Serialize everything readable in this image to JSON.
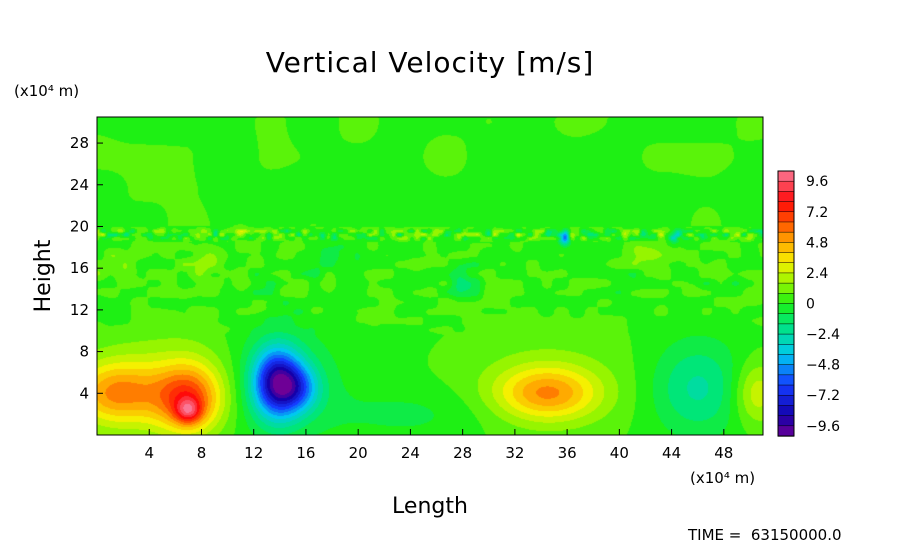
{
  "chart_data": {
    "type": "heatmap",
    "title": "Vertical Velocity [m/s]",
    "xlabel": "Length",
    "ylabel": "Height",
    "x_unit": "(x10⁴ m)",
    "y_unit": "(x10⁴ m)",
    "xlim": [
      0,
      51
    ],
    "ylim": [
      0,
      30.5
    ],
    "x_ticks": [
      4,
      8,
      12,
      16,
      20,
      24,
      28,
      32,
      36,
      40,
      44,
      48
    ],
    "y_ticks": [
      4,
      8,
      12,
      16,
      20,
      24,
      28
    ],
    "colorbar": {
      "ticks": [
        9.6,
        7.2,
        4.8,
        2.4,
        0,
        -2.4,
        -4.8,
        -7.2,
        -9.6
      ],
      "tick_labels": [
        "9.6",
        "7.2",
        "4.8",
        "2.4",
        "0",
        "−2.4",
        "−4.8",
        "−7.2",
        "−9.6"
      ],
      "range": [
        -10.4,
        10.4
      ]
    },
    "background_value": 0.3,
    "features": [
      {
        "name": "updraft-left",
        "x": 1.5,
        "y": 4.0,
        "rx": 3.5,
        "ry": 3.0,
        "value": 4.5
      },
      {
        "name": "updraft-core",
        "x": 7.0,
        "y": 3.5,
        "rx": 2.5,
        "ry": 3.2,
        "value": 5.5
      },
      {
        "name": "updraft-peak",
        "x": 7.0,
        "y": 2.3,
        "rx": 1.0,
        "ry": 1.2,
        "value": 4.0
      },
      {
        "name": "warm-halo",
        "x": 6.0,
        "y": 5.0,
        "rx": 6.0,
        "ry": 5.0,
        "value": 1.5
      },
      {
        "name": "downdraft",
        "x": 13.8,
        "y": 5.0,
        "rx": 1.8,
        "ry": 3.2,
        "value": -8.5
      },
      {
        "name": "downdraft-trail",
        "x": 15.5,
        "y": 4.5,
        "rx": 1.6,
        "ry": 2.2,
        "value": -3.5
      },
      {
        "name": "downdraft-halo",
        "x": 14.0,
        "y": 5.0,
        "rx": 4.5,
        "ry": 5.5,
        "value": -1.8
      },
      {
        "name": "updraft-right",
        "x": 34.5,
        "y": 4.0,
        "rx": 3.8,
        "ry": 2.5,
        "value": 4.2
      },
      {
        "name": "updraft-right-halo",
        "x": 34.5,
        "y": 5.0,
        "rx": 6.5,
        "ry": 5.0,
        "value": 1.0
      },
      {
        "name": "weak-downdraft",
        "x": 46.0,
        "y": 4.5,
        "rx": 3.5,
        "ry": 4.5,
        "value": -2.5
      },
      {
        "name": "edge-updraft",
        "x": 50.5,
        "y": 4.0,
        "rx": 1.8,
        "ry": 3.0,
        "value": 2.5
      },
      {
        "name": "low-blue",
        "x": 24.0,
        "y": 2.0,
        "rx": 6.0,
        "ry": 2.5,
        "value": -0.9
      },
      {
        "name": "gravity-wave-1",
        "x": 8.5,
        "y": 16.8,
        "rx": 1.3,
        "ry": 1.3,
        "value": 1.6
      },
      {
        "name": "gravity-wave-2",
        "x": 2.0,
        "y": 16.0,
        "rx": 1.5,
        "ry": 1.8,
        "value": 1.0
      },
      {
        "name": "gravity-wave-3",
        "x": 28.0,
        "y": 14.5,
        "rx": 2.0,
        "ry": 1.2,
        "value": -1.0
      },
      {
        "name": "gravity-wave-4",
        "x": 18.0,
        "y": 17.0,
        "rx": 1.5,
        "ry": 1.5,
        "value": -0.9
      },
      {
        "name": "gravity-wave-5",
        "x": 42.0,
        "y": 17.5,
        "rx": 1.5,
        "ry": 1.2,
        "value": 1.0
      },
      {
        "name": "tropopause-pulse-1",
        "x": 35.8,
        "y": 18.8,
        "rx": 0.4,
        "ry": 0.6,
        "value": -5.0
      },
      {
        "name": "tropopause-pulse-2",
        "x": 44.2,
        "y": 19.0,
        "rx": 0.4,
        "ry": 0.6,
        "value": -3.0
      },
      {
        "name": "tropopause-pulse-3",
        "x": 11.0,
        "y": 19.3,
        "rx": 0.5,
        "ry": 0.5,
        "value": 2.5
      }
    ],
    "tropopause_band": {
      "y_min": 18.5,
      "y_max": 20.0,
      "amplitude": 2.2
    },
    "mid_noise": {
      "y_min": 9.5,
      "y_max": 20.0,
      "amplitude": 0.9
    }
  },
  "time_label": "TIME =  63150000.0",
  "icons": [
    "colorbar-scale"
  ]
}
